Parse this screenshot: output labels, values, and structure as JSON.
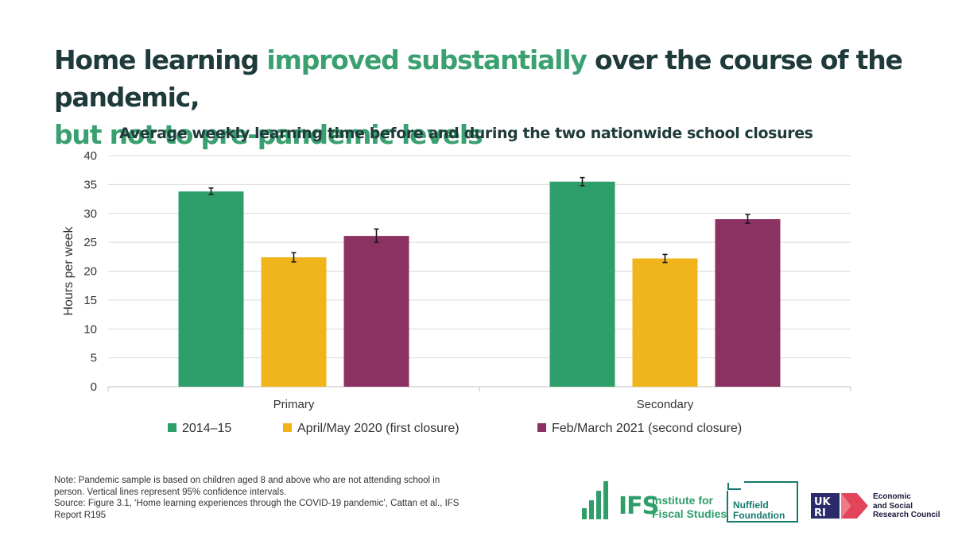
{
  "headline": {
    "part1": "Home learning ",
    "accent1": "improved substantially",
    "part2": " over the course of the pandemic, ",
    "accent2": "but not to pre-pandemic levels"
  },
  "chart_data": {
    "type": "bar",
    "title": "Average weekly learning time before and during the two nationwide school closures",
    "xlabel": "",
    "ylabel": "Hours per week",
    "ylim": [
      0,
      40
    ],
    "yticks": [
      0,
      5,
      10,
      15,
      20,
      25,
      30,
      35,
      40
    ],
    "grid": true,
    "legend_position": "bottom",
    "categories": [
      "Primary",
      "Secondary"
    ],
    "series": [
      {
        "name": "2014–15",
        "color": "#2e9e6a",
        "values": [
          33.8,
          35.5
        ],
        "ci_low": [
          33.3,
          34.8
        ],
        "ci_high": [
          34.4,
          36.2
        ]
      },
      {
        "name": "April/May 2020 (first closure)",
        "color": "#f0b41c",
        "values": [
          22.4,
          22.2
        ],
        "ci_low": [
          21.6,
          21.5
        ],
        "ci_high": [
          23.2,
          22.9
        ]
      },
      {
        "name": "Feb/March 2021 (second closure)",
        "color": "#8b3262",
        "values": [
          26.1,
          29.0
        ],
        "ci_low": [
          25.0,
          28.3
        ],
        "ci_high": [
          27.3,
          29.8
        ]
      }
    ]
  },
  "note": {
    "line1": "Note: Pandemic sample is based on children aged 8 and above who are not attending school in",
    "line2": "person. Vertical lines represent 95% confidence intervals.",
    "line3": "Source: Figure 3.1, ‘Home learning experiences through the COVID-19 pandemic’, Cattan et al., IFS",
    "line4": "Report R195"
  },
  "logos": {
    "ifs_mark": "IFS",
    "ifs_line1": "Institute for",
    "ifs_line2": "Fiscal Studies",
    "nuffield_line1": "Nuffield",
    "nuffield_line2": "Foundation",
    "ukri_mark": "UKRI",
    "esrc_line1": "Economic",
    "esrc_line2": "and Social",
    "esrc_line3": "Research Council"
  }
}
